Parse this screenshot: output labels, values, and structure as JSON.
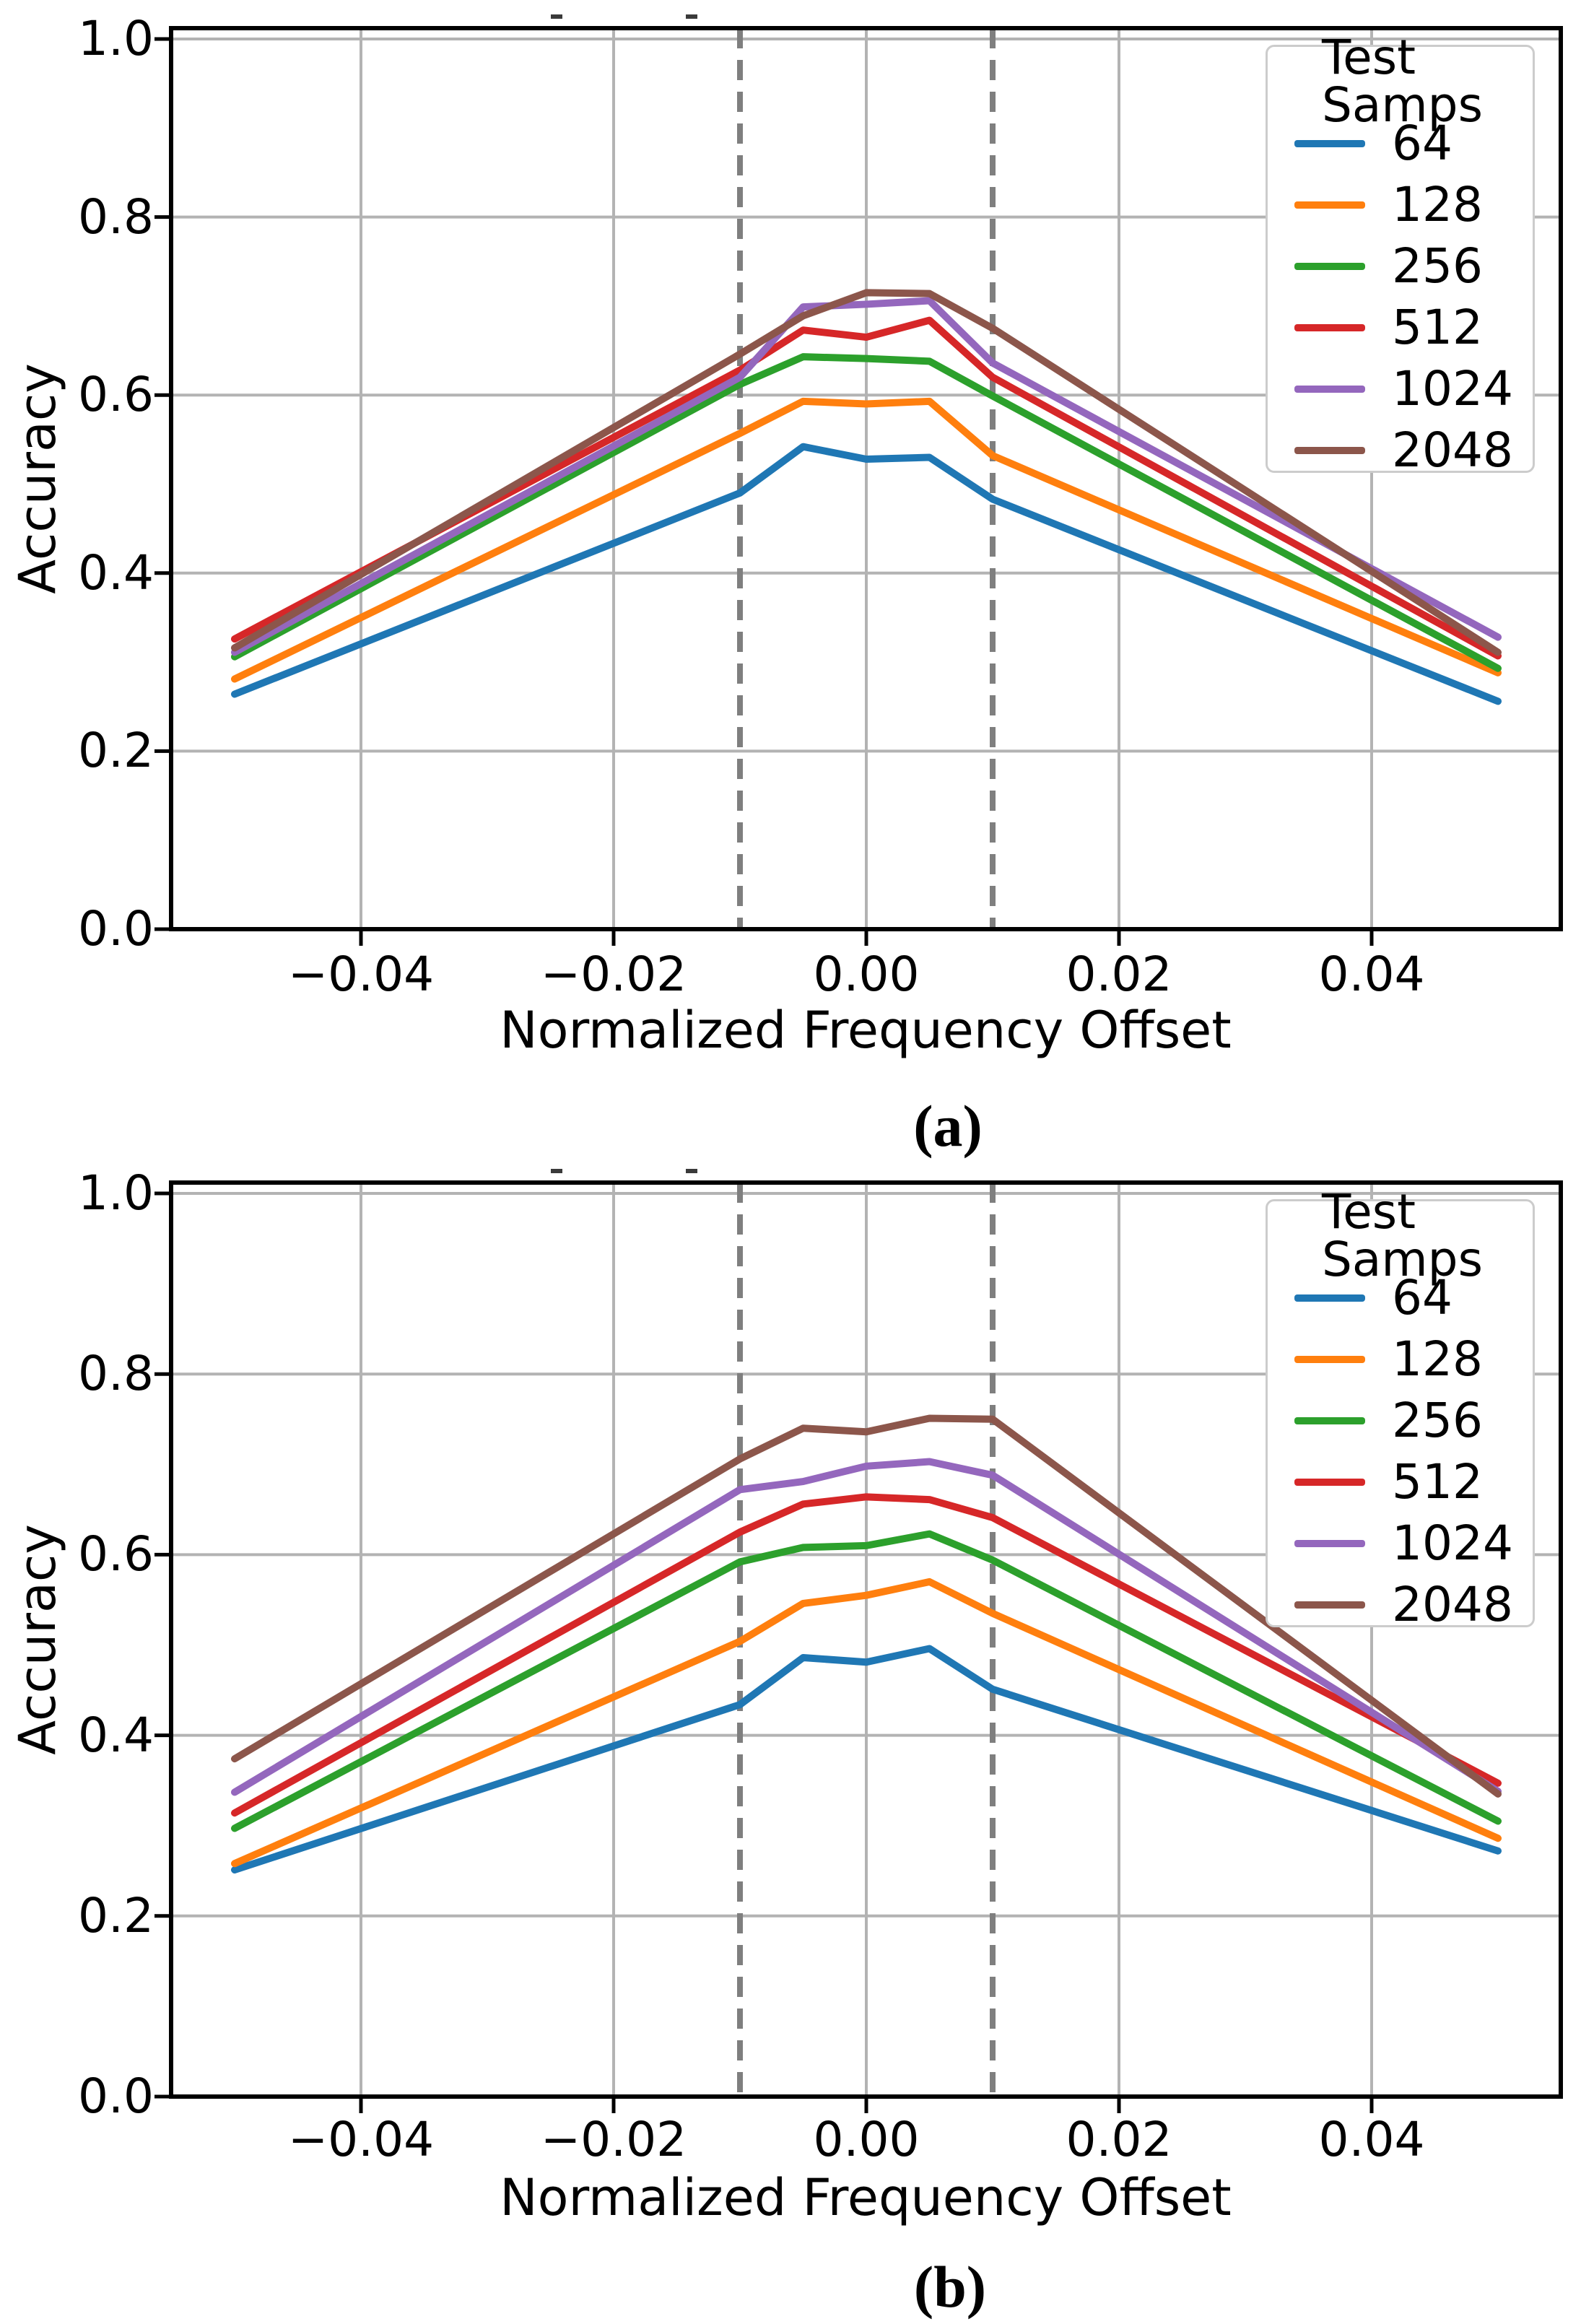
{
  "figure_caption_a": "(a)",
  "figure_caption_b": "(b)",
  "chart_data": [
    {
      "id": "a",
      "type": "line",
      "caption": "(a)",
      "title": "",
      "xlabel": "Normalized Frequency Offset",
      "ylabel": "Accuracy",
      "legend_title": "Test Samps",
      "legend_position": "upper right",
      "grid": true,
      "xlim": [
        -0.055,
        0.055
      ],
      "ylim": [
        0,
        1.012
      ],
      "xticks": [
        -0.04,
        -0.02,
        0.0,
        0.02,
        0.04
      ],
      "xticklabels": [
        "−0.04",
        "−0.02",
        "0.00",
        "0.02",
        "0.04"
      ],
      "yticks": [
        0.0,
        0.2,
        0.4,
        0.6,
        0.8,
        1.0
      ],
      "yticklabels": [
        "0.0",
        "0.2",
        "0.4",
        "0.6",
        "0.8",
        "1.0"
      ],
      "vlines": {
        "x": [
          -0.01,
          0.01
        ],
        "style": "dashed",
        "color": "#7f7f7f"
      },
      "x": [
        -0.05,
        -0.01,
        -0.005,
        0.0,
        0.005,
        0.01,
        0.05
      ],
      "series": [
        {
          "name": "64",
          "color": "#1f77b4",
          "values": [
            0.264,
            0.49,
            0.542,
            0.528,
            0.53,
            0.483,
            0.256
          ]
        },
        {
          "name": "128",
          "color": "#ff7f0e",
          "values": [
            0.281,
            0.557,
            0.593,
            0.59,
            0.593,
            0.532,
            0.288
          ]
        },
        {
          "name": "256",
          "color": "#2ca02c",
          "values": [
            0.306,
            0.612,
            0.643,
            0.641,
            0.638,
            0.599,
            0.293
          ]
        },
        {
          "name": "512",
          "color": "#d62728",
          "values": [
            0.326,
            0.628,
            0.673,
            0.665,
            0.684,
            0.62,
            0.307
          ]
        },
        {
          "name": "1024",
          "color": "#9467bd",
          "values": [
            0.311,
            0.62,
            0.699,
            0.702,
            0.706,
            0.636,
            0.328
          ]
        },
        {
          "name": "2048",
          "color": "#8c564b",
          "values": [
            0.316,
            0.646,
            0.689,
            0.715,
            0.714,
            0.675,
            0.311
          ]
        }
      ]
    },
    {
      "id": "b",
      "type": "line",
      "caption": "(b)",
      "title": "",
      "xlabel": "Normalized Frequency Offset",
      "ylabel": "Accuracy",
      "legend_title": "Test Samps",
      "legend_position": "upper right",
      "grid": true,
      "xlim": [
        -0.055,
        0.055
      ],
      "ylim": [
        0,
        1.012
      ],
      "xticks": [
        -0.04,
        -0.02,
        0.0,
        0.02,
        0.04
      ],
      "xticklabels": [
        "−0.04",
        "−0.02",
        "0.00",
        "0.02",
        "0.04"
      ],
      "yticks": [
        0.0,
        0.2,
        0.4,
        0.6,
        0.8,
        1.0
      ],
      "yticklabels": [
        "0.0",
        "0.2",
        "0.4",
        "0.6",
        "0.8",
        "1.0"
      ],
      "vlines": {
        "x": [
          -0.01,
          0.01
        ],
        "style": "dashed",
        "color": "#7f7f7f"
      },
      "x": [
        -0.05,
        -0.01,
        -0.005,
        0.0,
        0.005,
        0.01,
        0.05
      ],
      "series": [
        {
          "name": "64",
          "color": "#1f77b4",
          "values": [
            0.251,
            0.434,
            0.486,
            0.481,
            0.496,
            0.451,
            0.272
          ]
        },
        {
          "name": "128",
          "color": "#ff7f0e",
          "values": [
            0.258,
            0.504,
            0.546,
            0.555,
            0.57,
            0.535,
            0.286
          ]
        },
        {
          "name": "256",
          "color": "#2ca02c",
          "values": [
            0.297,
            0.592,
            0.608,
            0.61,
            0.623,
            0.594,
            0.305
          ]
        },
        {
          "name": "512",
          "color": "#d62728",
          "values": [
            0.314,
            0.625,
            0.656,
            0.664,
            0.661,
            0.641,
            0.347
          ]
        },
        {
          "name": "1024",
          "color": "#9467bd",
          "values": [
            0.337,
            0.672,
            0.681,
            0.698,
            0.703,
            0.688,
            0.338
          ]
        },
        {
          "name": "2048",
          "color": "#8c564b",
          "values": [
            0.374,
            0.706,
            0.74,
            0.736,
            0.751,
            0.75,
            0.335
          ]
        }
      ]
    }
  ],
  "style_colors": {
    "gridline": "#b3b3b3",
    "spine": "#000000",
    "dashed_vline": "#7f7f7f",
    "legend_border": "#cccccc"
  }
}
